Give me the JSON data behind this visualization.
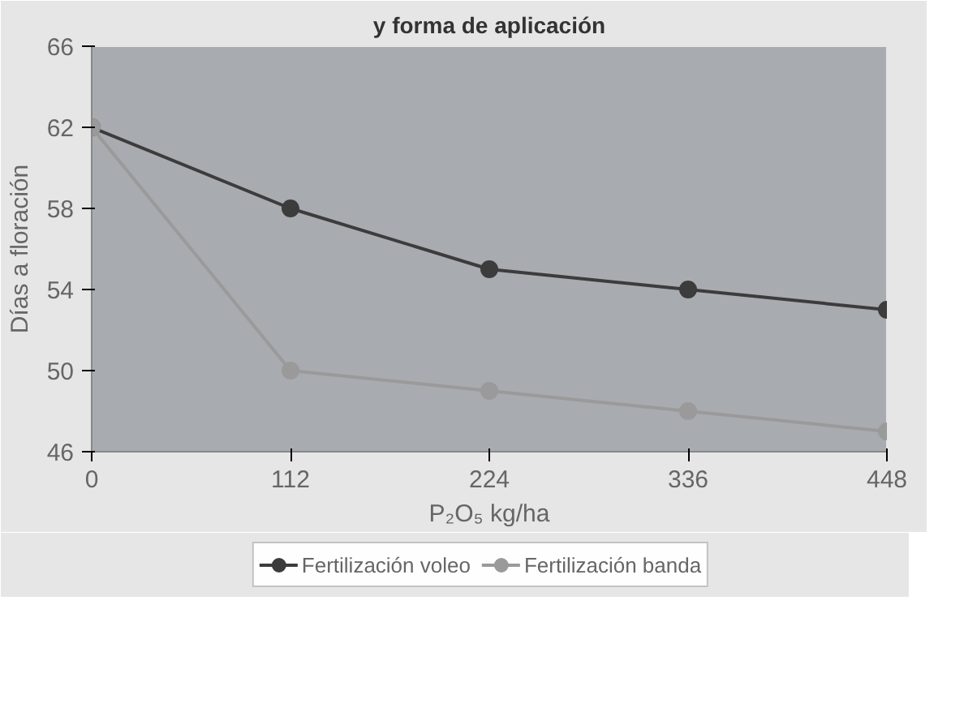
{
  "chart_data": {
    "type": "line",
    "title": "y forma de aplicación",
    "xlabel": "P₂O₅ kg/ha",
    "ylabel": "Días a floración",
    "x": [
      0,
      112,
      224,
      336,
      448
    ],
    "xlim": [
      0,
      448
    ],
    "xticks": [
      0,
      112,
      224,
      336,
      448
    ],
    "ylim": [
      46,
      66
    ],
    "yticks": [
      46,
      50,
      54,
      58,
      62,
      66
    ],
    "series": [
      {
        "name": "Fertilización voleo",
        "color": "#3c3c3c",
        "values": [
          62,
          58,
          55,
          54,
          53
        ]
      },
      {
        "name": "Fertilización banda",
        "color": "#9a9a9a",
        "values": [
          62,
          50,
          49,
          48,
          47
        ]
      }
    ],
    "marker": "circle",
    "grid": false,
    "legend": "bottom"
  }
}
